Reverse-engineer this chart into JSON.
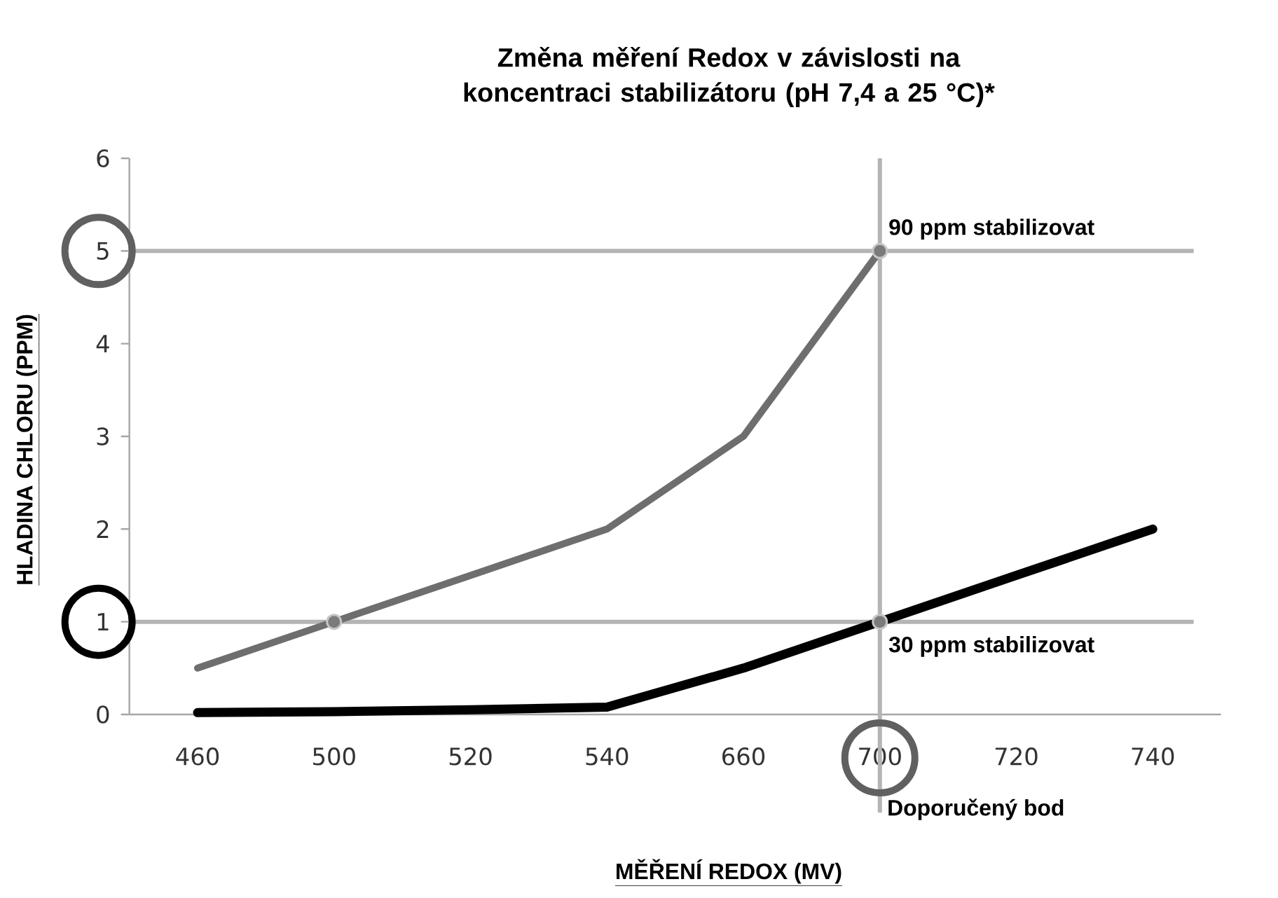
{
  "chart_data": {
    "type": "line",
    "title": "Změna měření Redox v závislosti na koncentraci stabilizátoru (pH 7,4 a 25 °C)*",
    "xlabel": "MĚŘENÍ REDOX (MV)",
    "ylabel": "HLADINA CHLORU (PPM)",
    "categories": [
      "460",
      "500",
      "520",
      "540",
      "660",
      "700",
      "720",
      "740"
    ],
    "series": [
      {
        "color": "#6d6e6d",
        "values": [
          0.5,
          1.0,
          1.5,
          2.0,
          3.0,
          5.0,
          null,
          null
        ]
      },
      {
        "color": "#000000",
        "values": [
          0.02,
          0.03,
          0.05,
          0.08,
          0.5,
          1.0,
          1.5,
          2.0
        ]
      },
      {
        "type": "scatter",
        "color": "#7a7b7a",
        "x": [
          "500",
          "700",
          "700"
        ],
        "values": [
          1,
          5,
          1
        ]
      }
    ],
    "ylim": [
      0,
      6
    ],
    "yticks": [
      0,
      1,
      2,
      3,
      4,
      5,
      6
    ],
    "grid": false,
    "ref_lines": [
      {
        "axis": "y",
        "value": 5,
        "label": "90 ppm stabilizovat",
        "color": "#b3b4b3"
      },
      {
        "axis": "y",
        "value": 1,
        "label": "30 ppm stabilizovat",
        "color": "#b3b4b3"
      },
      {
        "axis": "x",
        "value": "700",
        "label": "Doporučený bod",
        "color": "#b3b4b3"
      }
    ]
  }
}
